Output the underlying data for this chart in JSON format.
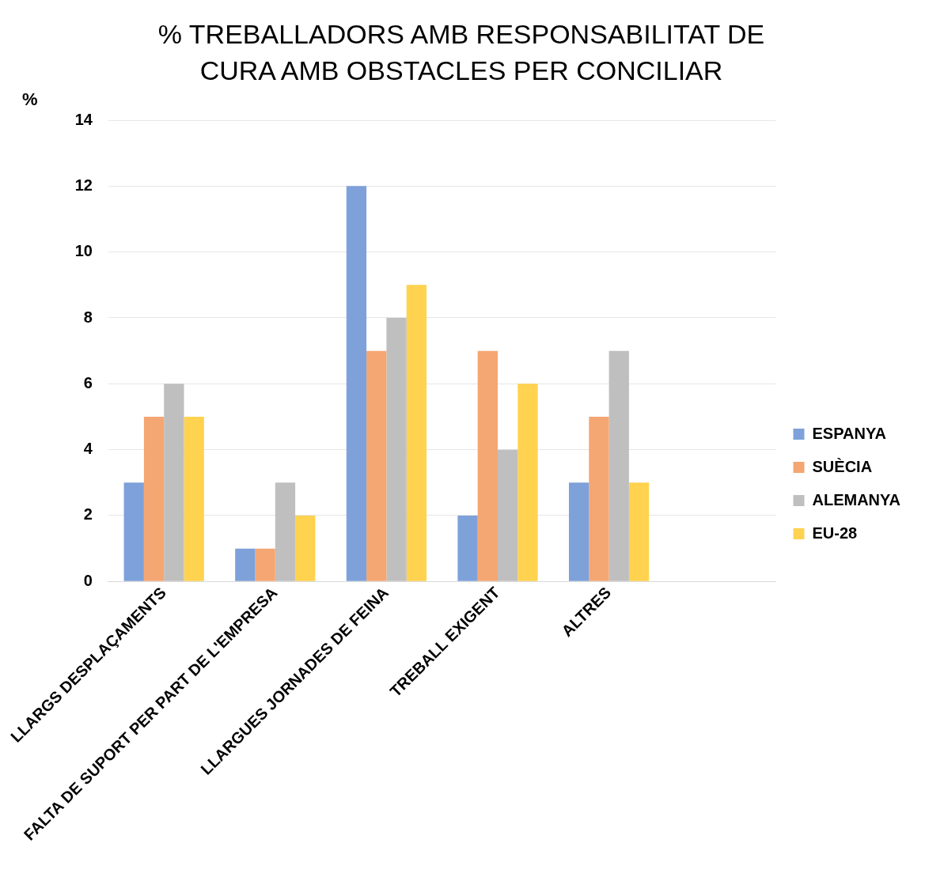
{
  "chart_data": {
    "type": "bar",
    "title": "% TREBALLADORS AMB RESPONSABILITAT DE CURA AMB OBSTACLES PER CONCILIAR",
    "ylabel": "%",
    "categories": [
      "LLARGS DESPLAÇAMENTS",
      "FALTA DE SUPORT PER PART DE L'EMPRESA",
      "LLARGUES JORNADES DE FEINA",
      "TREBALL EXIGENT",
      "ALTRES",
      null
    ],
    "series": [
      {
        "name": "ESPANYA",
        "color": "#7ea1da",
        "values": [
          3,
          1,
          12,
          2,
          3,
          null
        ]
      },
      {
        "name": "SUÈCIA",
        "color": "#f4a673",
        "values": [
          5,
          1,
          7,
          7,
          5,
          null
        ]
      },
      {
        "name": "ALEMANYA",
        "color": "#bfbfbf",
        "values": [
          6,
          3,
          8,
          4,
          7,
          null
        ]
      },
      {
        "name": "EU-28",
        "color": "#ffd24f",
        "values": [
          5,
          2,
          9,
          6,
          3,
          null
        ]
      }
    ],
    "ylim": [
      0,
      14
    ],
    "yticks": [
      0,
      2,
      4,
      6,
      8,
      10,
      12,
      14
    ],
    "grid": "y",
    "legend": "right"
  }
}
